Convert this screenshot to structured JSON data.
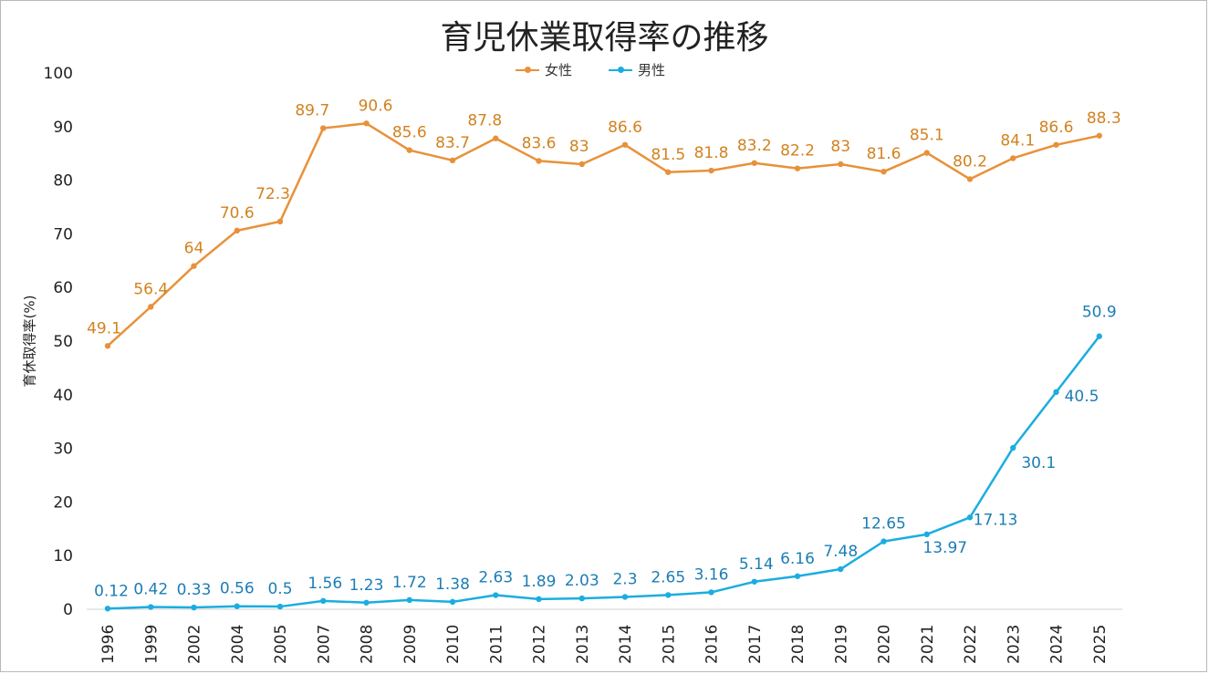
{
  "chart_data": {
    "type": "line",
    "title": "育児休業取得率の推移",
    "ylabel": "育休取得率(%)",
    "xlabel": "",
    "ylim": [
      0,
      100
    ],
    "yticks": [
      0,
      10,
      20,
      30,
      40,
      50,
      60,
      70,
      80,
      90,
      100
    ],
    "grid": false,
    "legend_position": "top-center",
    "categories": [
      "1996",
      "1999",
      "2002",
      "2004",
      "2005",
      "2007",
      "2008",
      "2009",
      "2010",
      "2011",
      "2012",
      "2013",
      "2014",
      "2015",
      "2016",
      "2017",
      "2018",
      "2019",
      "2020",
      "2021",
      "2022",
      "2023",
      "2024",
      "2025"
    ],
    "series": [
      {
        "name": "女性",
        "color": "#E8913A",
        "label_color": "#D2821F",
        "values": [
          49.1,
          56.4,
          64,
          70.6,
          72.3,
          89.7,
          90.6,
          85.6,
          83.7,
          87.8,
          83.6,
          83,
          86.6,
          81.5,
          81.8,
          83.2,
          82.2,
          83,
          81.6,
          85.1,
          80.2,
          84.1,
          86.6,
          88.3
        ],
        "labels": [
          "49.1",
          "56.4",
          "64",
          "70.6",
          "72.3",
          "89.7",
          "90.6",
          "85.6",
          "83.7",
          "87.8",
          "83.6",
          "83",
          "86.6",
          "81.5",
          "81.8",
          "83.2",
          "82.2",
          "83",
          "81.6",
          "85.1",
          "80.2",
          "84.1",
          "86.6",
          "88.3"
        ]
      },
      {
        "name": "男性",
        "color": "#1BADE0",
        "label_color": "#1B7DB5",
        "values": [
          0.12,
          0.42,
          0.33,
          0.56,
          0.5,
          1.56,
          1.23,
          1.72,
          1.38,
          2.63,
          1.89,
          2.03,
          2.3,
          2.65,
          3.16,
          5.14,
          6.16,
          7.48,
          12.65,
          13.97,
          17.13,
          30.1,
          40.5,
          50.9
        ],
        "labels": [
          "0.12",
          "0.42",
          "0.33",
          "0.56",
          "0.5",
          "1.56",
          "1.23",
          "1.72",
          "1.38",
          "2.63",
          "1.89",
          "2.03",
          "2.3",
          "2.65",
          "3.16",
          "5.14",
          "6.16",
          "7.48",
          "12.65",
          "13.97",
          "17.13",
          "30.1",
          "40.5",
          "50.9"
        ]
      }
    ]
  }
}
